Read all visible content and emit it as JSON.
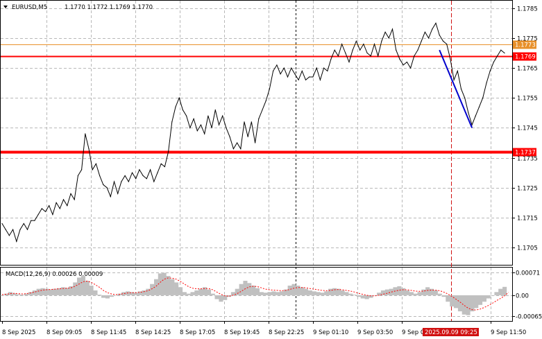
{
  "header": {
    "symbol": "EURUSD,M5",
    "ohlc": "1.1770 1.1772 1.1769 1.1770"
  },
  "macd_header": "MACD(12,26,9) 0.00026 0.00009",
  "colors": {
    "support": "#ff0000",
    "orange_level": "#e8902a",
    "price_line": "#000000",
    "trend": "#0000cc",
    "macd_hist": "#c0c0c0",
    "macd_signal": "#ff0000",
    "marker": "#d01010"
  },
  "chart_data": [
    {
      "type": "line",
      "title": "EURUSD,M5",
      "ylim": [
        1.17,
        1.1785
      ],
      "y_ticks": [
        "1.1785",
        "1.1775",
        "1.1765",
        "1.1755",
        "1.1745",
        "1.1735",
        "1.1725",
        "1.1715",
        "1.1705"
      ],
      "x_ticks": [
        "8 Sep 2025",
        "8 Sep 09:05",
        "8 Sep 11:45",
        "8 Sep 14:25",
        "8 Sep 17:05",
        "8 Sep 19:45",
        "8 Sep 22:25",
        "9 Sep 01:10",
        "9 Sep 03:50",
        "9 Sep 0",
        "9 Sep 11:50"
      ],
      "x_marker": "2025.09.09 09:25",
      "levels": [
        {
          "label": "1.1773",
          "value": 1.1773
        },
        {
          "label": "1.1769",
          "value": 1.1769
        },
        {
          "label": "1.1737",
          "value": 1.1737
        }
      ],
      "series": [
        {
          "values": [
            1.1713,
            1.1711,
            1.1709,
            1.1711,
            1.1707,
            1.1711,
            1.1713,
            1.1711,
            1.1714,
            1.1714,
            1.1716,
            1.1718,
            1.1717,
            1.1719,
            1.1716,
            1.172,
            1.1718,
            1.1721,
            1.1719,
            1.1723,
            1.1721,
            1.1729,
            1.1731,
            1.1743,
            1.1738,
            1.1731,
            1.1733,
            1.1729,
            1.1726,
            1.1725,
            1.1722,
            1.1727,
            1.1723,
            1.1727,
            1.1729,
            1.1727,
            1.173,
            1.1728,
            1.1731,
            1.1729,
            1.1728,
            1.1731,
            1.1727,
            1.173,
            1.1733,
            1.1732,
            1.1737,
            1.1747,
            1.1752,
            1.1755,
            1.1751,
            1.1749,
            1.1745,
            1.1748,
            1.1744,
            1.1746,
            1.1743,
            1.1749,
            1.1745,
            1.1751,
            1.1746,
            1.1749,
            1.1745,
            1.1742,
            1.1738,
            1.174,
            1.1738,
            1.1747,
            1.1742,
            1.1747,
            1.174,
            1.1748,
            1.1751,
            1.1754,
            1.1758,
            1.1764,
            1.1766,
            1.1763,
            1.1765,
            1.1762,
            1.1765,
            1.1763,
            1.1761,
            1.1764,
            1.1761,
            1.1762,
            1.1762,
            1.1765,
            1.1761,
            1.1765,
            1.1764,
            1.1768,
            1.1771,
            1.1769,
            1.1773,
            1.177,
            1.1767,
            1.1771,
            1.1774,
            1.1771,
            1.1773,
            1.177,
            1.1769,
            1.1773,
            1.1769,
            1.1774,
            1.1777,
            1.1775,
            1.1778,
            1.1771,
            1.1768,
            1.1766,
            1.1767,
            1.1765,
            1.1769,
            1.1771,
            1.1774,
            1.1777,
            1.1775,
            1.1778,
            1.178,
            1.1776,
            1.1774,
            1.1773,
            1.1768,
            1.1761,
            1.1764,
            1.1758,
            1.1755,
            1.175,
            1.1746,
            1.1749,
            1.1752,
            1.1755,
            1.176,
            1.1764,
            1.1767,
            1.1769,
            1.1771,
            1.177
          ]
        }
      ],
      "trend_line": {
        "from_index": 121,
        "to_index": 130,
        "from_value": 1.1771,
        "to_value": 1.1745
      }
    },
    {
      "type": "bar",
      "title": "MACD(12,26,9) 0.00026 0.00009",
      "ylim": [
        -0.00065,
        0.00071
      ],
      "y_ticks": [
        "0.00071",
        "0.00",
        "-0.00065"
      ],
      "series": [
        {
          "name": "MACD",
          "values": [
            0.0,
            5e-05,
            0.0001,
            6e-05,
            3e-05,
            2e-05,
            5e-05,
            0.0001,
            0.00015,
            0.0002,
            0.00022,
            0.0002,
            0.00018,
            0.0002,
            0.00022,
            0.00025,
            0.00023,
            0.00028,
            0.0004,
            0.00055,
            0.0006,
            0.00045,
            0.0003,
            0.00015,
            2e-05,
            -8e-05,
            -0.0001,
            -5e-05,
            0.0,
            5e-05,
            0.0001,
            0.00012,
            0.0001,
            8e-05,
            0.00012,
            0.00015,
            0.0002,
            0.00035,
            0.0005,
            0.00068,
            0.0007,
            0.0006,
            0.0005,
            0.0004,
            0.00025,
            0.0001,
            5e-05,
            0.0001,
            0.00015,
            0.0002,
            0.00025,
            0.00018,
            5e-05,
            -0.00012,
            -0.0002,
            -0.00015,
            -5e-05,
            0.0001,
            0.0002,
            0.00035,
            0.00045,
            0.00038,
            0.0003,
            0.00022,
            0.0001,
            8e-05,
            0.0001,
            0.00012,
            0.0001,
            0.00012,
            0.00018,
            0.0003,
            0.00035,
            0.0003,
            0.00025,
            0.0002,
            0.00015,
            0.00012,
            0.0001,
            8e-05,
            0.00012,
            0.0002,
            0.00022,
            0.0002,
            0.00015,
            0.0001,
            5e-05,
            2e-05,
            -5e-05,
            -0.0001,
            -0.00012,
            -8e-05,
            0.0,
            8e-05,
            0.00015,
            0.00018,
            0.0002,
            0.00025,
            0.00028,
            0.00022,
            0.00015,
            0.0001,
            5e-05,
            0.0001,
            0.00018,
            0.00025,
            0.0002,
            0.00015,
            5e-05,
            -5e-05,
            -0.0002,
            -0.00035,
            -0.0004,
            -0.0005,
            -0.0006,
            -0.00062,
            -0.0005,
            -0.0004,
            -0.0003,
            -0.0002,
            -0.0001,
            0.0,
            0.0001,
            0.0002,
            0.00026
          ]
        },
        {
          "name": "Signal",
          "values": [
            2e-05,
            3e-05,
            5e-05,
            6e-05,
            5e-05,
            4e-05,
            5e-05,
            7e-05,
            0.0001,
            0.00013,
            0.00016,
            0.00017,
            0.00018,
            0.00019,
            0.0002,
            0.00021,
            0.00022,
            0.00023,
            0.00028,
            0.00035,
            0.00042,
            0.00044,
            0.0004,
            0.00033,
            0.00025,
            0.00015,
            8e-05,
            4e-05,
            2e-05,
            3e-05,
            5e-05,
            7e-05,
            8e-05,
            8e-05,
            9e-05,
            0.00011,
            0.00014,
            0.0002,
            0.00028,
            0.0004,
            0.0005,
            0.00054,
            0.00053,
            0.0005,
            0.00043,
            0.00035,
            0.00027,
            0.00022,
            0.0002,
            0.0002,
            0.00021,
            0.00021,
            0.00017,
            0.0001,
            3e-05,
            -2e-05,
            -3e-05,
            0.0,
            5e-05,
            0.00012,
            0.0002,
            0.00026,
            0.00028,
            0.00027,
            0.00023,
            0.00019,
            0.00017,
            0.00016,
            0.00015,
            0.00014,
            0.00015,
            0.00018,
            0.00022,
            0.00024,
            0.00024,
            0.00023,
            0.00021,
            0.00019,
            0.00017,
            0.00015,
            0.00014,
            0.00015,
            0.00017,
            0.00018,
            0.00017,
            0.00015,
            0.00013,
            0.0001,
            6e-05,
            3e-05,
            0.0,
            -2e-05,
            -2e-05,
            0.0,
            3e-05,
            6e-05,
            0.0001,
            0.00013,
            0.00016,
            0.00017,
            0.00017,
            0.00015,
            0.00013,
            0.00012,
            0.00013,
            0.00015,
            0.00016,
            0.00016,
            0.00014,
            0.0001,
            4e-05,
            -4e-05,
            -0.00012,
            -0.00021,
            -0.00031,
            -0.0004,
            -0.00045,
            -0.00046,
            -0.00043,
            -0.00038,
            -0.00032,
            -0.00025,
            -0.00017,
            -0.0001,
            -2e-05,
            9e-05
          ]
        }
      ]
    }
  ]
}
